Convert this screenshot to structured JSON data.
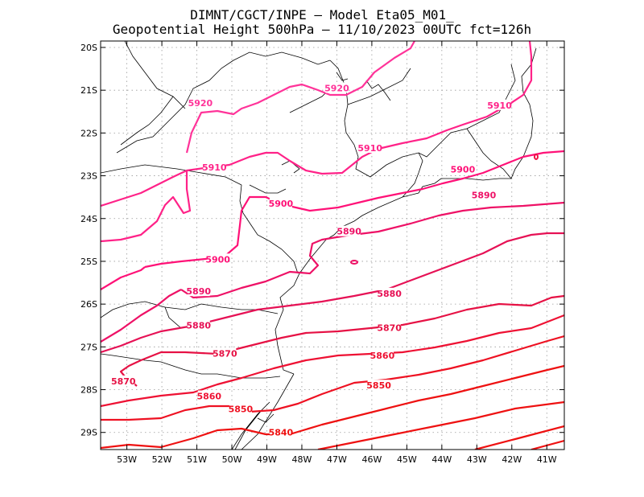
{
  "title": {
    "line1": "DIMNT/CGCT/INPE –   Model Eta05_M01_",
    "line2": "Geopotential Height 500hPa –   11/10/2023 00UTC fct=126h"
  },
  "map_data": {
    "type": "contour",
    "field": "Geopotential Height 500hPa",
    "lon_range": [
      -53.75,
      -40.5
    ],
    "lat_range": [
      -29.4,
      -19.85
    ],
    "lat_ticks": [
      "20S",
      "21S",
      "22S",
      "23S",
      "24S",
      "25S",
      "26S",
      "27S",
      "28S",
      "29S"
    ],
    "lon_ticks": [
      "53W",
      "52W",
      "51W",
      "50W",
      "49W",
      "48W",
      "47W",
      "46W",
      "45W",
      "44W",
      "43W",
      "42W",
      "41W"
    ],
    "grid": true,
    "contour_levels": [
      5920,
      5910,
      5900,
      5890,
      5880,
      5870,
      5860,
      5850,
      5840
    ],
    "contour_labels": [
      {
        "text": "5920",
        "lon": -50.9,
        "lat": -21.3
      },
      {
        "text": "5920",
        "lon": -47.0,
        "lat": -20.95
      },
      {
        "text": "5910",
        "lon": -46.05,
        "lat": -22.35
      },
      {
        "text": "5910",
        "lon": -42.35,
        "lat": -21.35
      },
      {
        "text": "5910",
        "lon": -50.5,
        "lat": -22.8
      },
      {
        "text": "5900",
        "lon": -48.6,
        "lat": -23.65
      },
      {
        "text": "5900",
        "lon": -43.4,
        "lat": -22.85
      },
      {
        "text": "5900",
        "lon": -50.4,
        "lat": -24.95
      },
      {
        "text": "5890",
        "lon": -46.65,
        "lat": -24.3
      },
      {
        "text": "5890",
        "lon": -42.8,
        "lat": -23.45
      },
      {
        "text": "5890",
        "lon": -50.95,
        "lat": -25.7
      },
      {
        "text": "5880",
        "lon": -45.5,
        "lat": -25.75
      },
      {
        "text": "5880",
        "lon": -50.95,
        "lat": -26.5
      },
      {
        "text": "5870",
        "lon": -45.5,
        "lat": -26.55
      },
      {
        "text": "5870",
        "lon": -50.2,
        "lat": -27.15
      },
      {
        "text": "5870",
        "lon": -53.1,
        "lat": -27.8
      },
      {
        "text": "5860",
        "lon": -45.7,
        "lat": -27.2
      },
      {
        "text": "5860",
        "lon": -50.65,
        "lat": -28.15
      },
      {
        "text": "5850",
        "lon": -45.8,
        "lat": -27.9
      },
      {
        "text": "5850",
        "lon": -49.75,
        "lat": -28.45
      },
      {
        "text": "5840",
        "lon": -48.6,
        "lat": -29.0
      }
    ],
    "contour_colors": [
      "#ff3399",
      "#ff2288",
      "#ff1177",
      "#ee1166",
      "#e61155",
      "#e61144",
      "#ee1133",
      "#ee1122",
      "#ee1111"
    ],
    "coastline_color": "#000000"
  }
}
